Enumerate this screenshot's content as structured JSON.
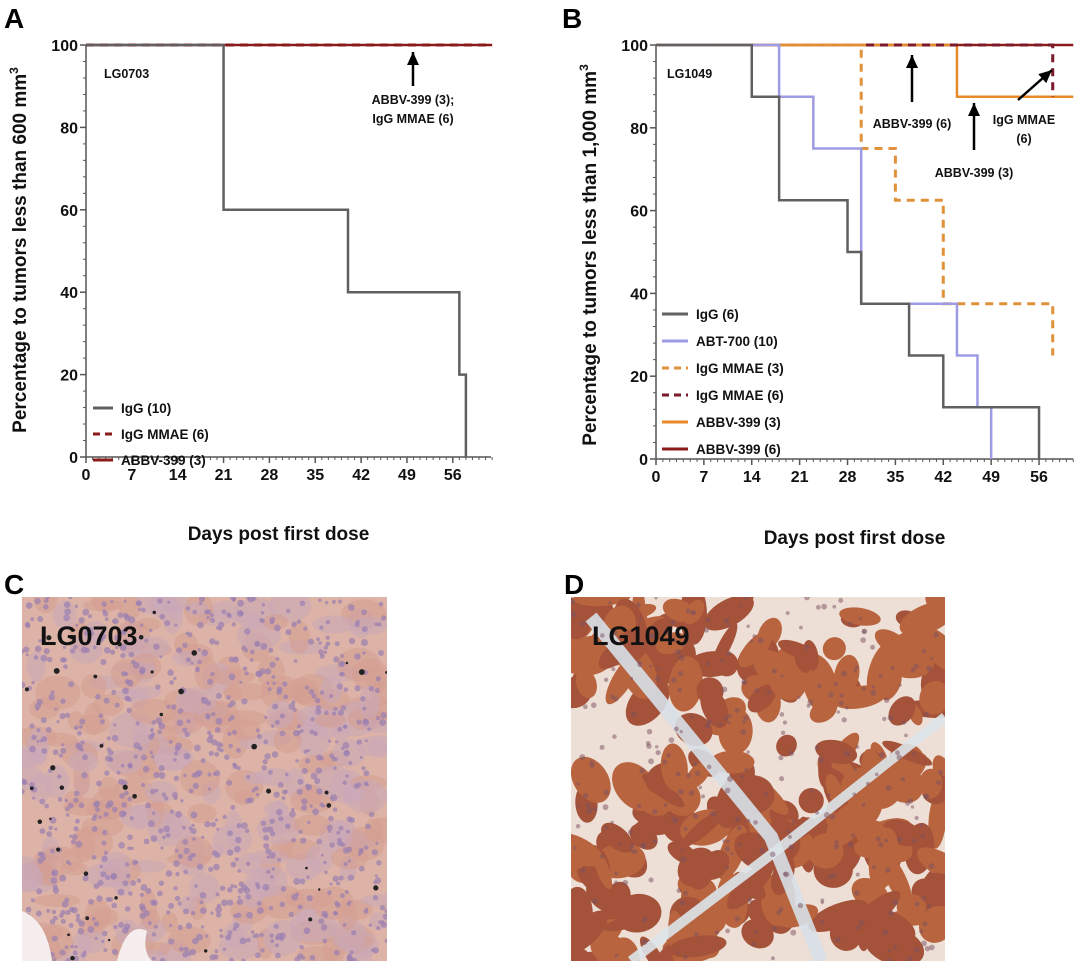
{
  "figure": {
    "panel_letters": [
      "A",
      "B",
      "C",
      "D"
    ],
    "histology": [
      {
        "panel": "C",
        "label": "LG0703",
        "stain_color": "#d9aa98"
      },
      {
        "panel": "D",
        "label": "LG1049",
        "stain_color": "#a9533a"
      }
    ]
  },
  "chart_data": [
    {
      "panel": "A",
      "type": "line",
      "subtype": "kaplan-meier-step",
      "inset_label": "LG0703",
      "xlabel": "Days post first dose",
      "ylabel": "Percentage to tumors less than 600 mm",
      "ylabel_superscript": "3",
      "xlim": [
        0,
        62
      ],
      "ylim": [
        0,
        100
      ],
      "xticks": [
        "0",
        "7",
        "14",
        "21",
        "28",
        "35",
        "42",
        "49",
        "56"
      ],
      "yticks": [
        "0",
        "20",
        "40",
        "60",
        "80",
        "100"
      ],
      "grid": false,
      "legend_position": "bottom-left",
      "series": [
        {
          "name": "IgG (10)",
          "color": "#606060",
          "dashed": false,
          "x": [
            0,
            21,
            40,
            57,
            58
          ],
          "y": [
            100,
            60,
            40,
            20,
            0
          ],
          "end": 58
        },
        {
          "name": "IgG MMAE (6)",
          "color": "#8b1a1a",
          "dashed": true,
          "x": [
            0
          ],
          "y": [
            100
          ],
          "end": 62
        },
        {
          "name": "ABBV-399 (3)",
          "color": "#8b1a1a",
          "dashed": false,
          "x": [
            0
          ],
          "y": [
            100
          ],
          "end": 62
        }
      ],
      "annotations": [
        {
          "lines": [
            "ABBV-399 (3);",
            "IgG MMAE (6)"
          ]
        }
      ]
    },
    {
      "panel": "B",
      "type": "line",
      "subtype": "kaplan-meier-step",
      "inset_label": "LG1049",
      "xlabel": "Days post first dose",
      "ylabel": "Percentage to tumors less than 1,000 mm",
      "ylabel_superscript": "3",
      "xlim": [
        0,
        61
      ],
      "ylim": [
        0,
        100
      ],
      "xticks": [
        "0",
        "7",
        "14",
        "21",
        "28",
        "35",
        "42",
        "49",
        "56"
      ],
      "yticks": [
        "0",
        "20",
        "40",
        "60",
        "80",
        "100"
      ],
      "grid": false,
      "legend_position": "bottom-left",
      "series": [
        {
          "name": "IgG (6)",
          "color": "#606060",
          "dashed": false,
          "x": [
            0,
            14,
            18,
            28,
            30,
            37,
            42,
            56
          ],
          "y": [
            100,
            87.5,
            62.5,
            50,
            37.5,
            25,
            12.5,
            0
          ],
          "end": 56
        },
        {
          "name": "ABT-700 (10)",
          "color": "#9d9be3",
          "dashed": false,
          "x": [
            0,
            18,
            23,
            30,
            44,
            47,
            49
          ],
          "y": [
            100,
            87.5,
            75,
            37.5,
            25,
            12.5,
            0
          ],
          "end": 49
        },
        {
          "name": "IgG MMAE (3)",
          "color": "#e0913a",
          "dashed": true,
          "x": [
            0,
            30,
            35,
            42,
            58
          ],
          "y": [
            100,
            75,
            62.5,
            37.5,
            25
          ],
          "end": 58
        },
        {
          "name": "IgG MMAE (6)",
          "color": "#7a1a2a",
          "dashed": true,
          "x": [
            0,
            58
          ],
          "y": [
            100,
            87.5
          ],
          "end": 58
        },
        {
          "name": "ABBV-399 (3)",
          "color": "#e8892a",
          "dashed": false,
          "x": [
            0,
            44
          ],
          "y": [
            100,
            87.5
          ],
          "end": 61
        },
        {
          "name": "ABBV-399 (6)",
          "color": "#8b1a1a",
          "dashed": false,
          "x": [
            0
          ],
          "y": [
            100
          ],
          "end": 61
        }
      ],
      "annotations": [
        {
          "lines": [
            "ABBV-399 (6)"
          ]
        },
        {
          "lines": [
            "ABBV-399 (3)"
          ]
        },
        {
          "lines": [
            "IgG MMAE",
            "(6)"
          ]
        }
      ]
    }
  ]
}
